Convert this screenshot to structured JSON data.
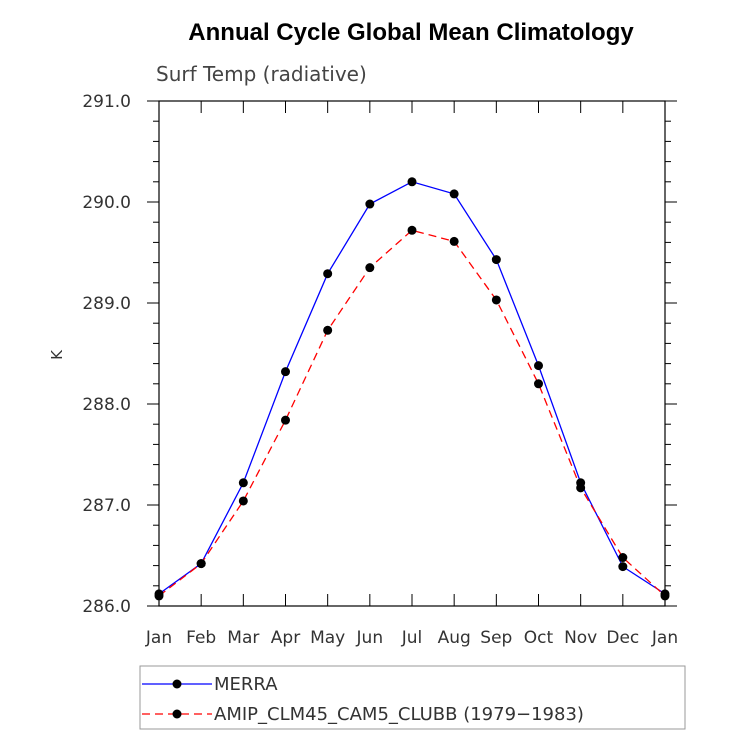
{
  "chart_data": {
    "type": "line",
    "title": "Annual Cycle Global Mean Climatology",
    "subtitle": "Surf Temp (radiative)",
    "xlabel": "",
    "ylabel": "K",
    "categories": [
      "Jan",
      "Feb",
      "Mar",
      "Apr",
      "May",
      "Jun",
      "Jul",
      "Aug",
      "Sep",
      "Oct",
      "Nov",
      "Dec",
      "Jan"
    ],
    "ylim": [
      286.0,
      291.0
    ],
    "yticks": [
      "286.0",
      "287.0",
      "288.0",
      "289.0",
      "290.0",
      "291.0"
    ],
    "series": [
      {
        "name": "MERRA",
        "color": "#0000ff",
        "line_style": "solid",
        "values": [
          286.12,
          286.42,
          287.22,
          288.32,
          289.29,
          289.98,
          290.2,
          290.08,
          289.43,
          288.38,
          287.22,
          286.39,
          286.12
        ]
      },
      {
        "name": "AMIP_CLM45_CAM5_CLUBB (1979−1983)",
        "color": "#ff0000",
        "line_style": "dashed",
        "values": [
          286.1,
          286.42,
          287.04,
          287.84,
          288.73,
          289.35,
          289.72,
          289.61,
          289.03,
          288.2,
          287.17,
          286.48,
          286.1
        ]
      }
    ],
    "legend_position": "bottom-left"
  }
}
